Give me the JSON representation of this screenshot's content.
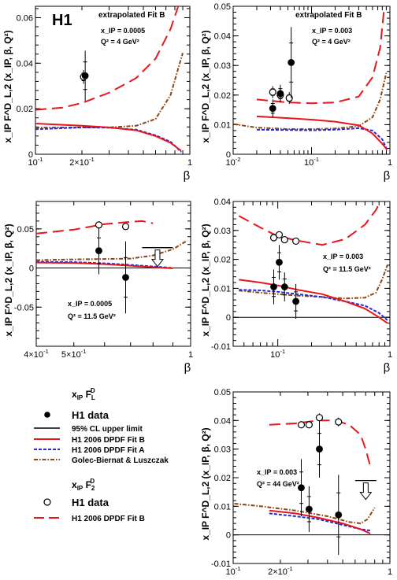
{
  "figure": {
    "logo": "H1",
    "ylabel": "x_IP F^D_L,2 (x_IP, β, Q²)",
    "xlabel": "β"
  },
  "legend": {
    "fl_header": "x_IP F^D_L",
    "f2_header": "x_IP F^D_2",
    "h1_data": "H1 data",
    "cl": "95% CL upper limit",
    "fitB": "H1 2006 DPDF Fit B",
    "fitA": "H1 2006 DPDF Fit A",
    "gbw": "Golec-Biernat & Luszczak"
  },
  "colors": {
    "fitB": "#e8161c",
    "fitA": "#1f2bd6",
    "gbw": "#8b4513",
    "axis": "#000000"
  },
  "chart_data": [
    {
      "type": "line",
      "xlog": true,
      "xlim": [
        0.1,
        1
      ],
      "ylim": [
        0,
        0.065
      ],
      "yticks": [
        "0",
        "0.02",
        "0.04",
        "0.06"
      ],
      "xticks": [
        {
          "v": 0.1,
          "t": "10^-1"
        },
        {
          "v": 0.2,
          "t": "2×10^-1"
        },
        {
          "v": 1,
          "t": "1"
        }
      ],
      "extra_label": "extrapolated Fit B",
      "xip_label": "x_IP = 0.0005",
      "q2_label": "Q² = 4 GeV²",
      "fl_points": [
        {
          "x": 0.21,
          "y": 0.0345,
          "e": 0.011
        }
      ],
      "f2_points": [
        {
          "x": 0.205,
          "y": 0.034,
          "e": 0.003
        }
      ],
      "curves": {
        "fitB_F2": [
          [
            0.1,
            0.0195
          ],
          [
            0.15,
            0.0205
          ],
          [
            0.2,
            0.0225
          ],
          [
            0.3,
            0.027
          ],
          [
            0.45,
            0.0335
          ],
          [
            0.6,
            0.042
          ],
          [
            0.75,
            0.055
          ],
          [
            0.85,
            0.066
          ]
        ],
        "fitB_FL": [
          [
            0.1,
            0.0135
          ],
          [
            0.2,
            0.0125
          ],
          [
            0.3,
            0.0118
          ],
          [
            0.45,
            0.0105
          ],
          [
            0.6,
            0.008
          ],
          [
            0.75,
            0.005
          ],
          [
            0.88,
            0.0015
          ]
        ],
        "fitA_FL": [
          [
            0.1,
            0.011
          ],
          [
            0.2,
            0.0118
          ],
          [
            0.3,
            0.0117
          ],
          [
            0.45,
            0.0108
          ],
          [
            0.6,
            0.0083
          ],
          [
            0.75,
            0.0055
          ],
          [
            0.88,
            0.001
          ]
        ],
        "gbw_FL": [
          [
            0.1,
            0.0117
          ],
          [
            0.2,
            0.0118
          ],
          [
            0.3,
            0.0118
          ],
          [
            0.45,
            0.0125
          ],
          [
            0.6,
            0.0155
          ],
          [
            0.75,
            0.026
          ],
          [
            0.9,
            0.0445
          ]
        ]
      }
    },
    {
      "type": "line",
      "xlog": true,
      "xlim": [
        0.01,
        1
      ],
      "ylim": [
        0,
        0.05
      ],
      "yticks": [
        "0",
        "0.01",
        "0.02",
        "0.03",
        "0.04",
        "0.05"
      ],
      "xticks": [
        {
          "v": 0.01,
          "t": "10^-2"
        },
        {
          "v": 0.1,
          "t": "10^-1"
        },
        {
          "v": 1,
          "t": "1"
        }
      ],
      "extra_label": "extrapolated Fit B",
      "xip_label": "x_IP = 0.003",
      "q2_label": "Q² = 4 GeV²",
      "fl_points": [
        {
          "x": 0.032,
          "y": 0.0155,
          "e": 0.003
        },
        {
          "x": 0.04,
          "y": 0.0205,
          "e": 0.003
        },
        {
          "x": 0.055,
          "y": 0.031,
          "e": 0.012
        }
      ],
      "f2_points": [
        {
          "x": 0.032,
          "y": 0.021,
          "e": 0.002
        },
        {
          "x": 0.04,
          "y": 0.02,
          "e": 0.002
        },
        {
          "x": 0.052,
          "y": 0.019,
          "e": 0.002
        }
      ],
      "curves": {
        "fitB_F2": [
          [
            0.02,
            0.0185
          ],
          [
            0.05,
            0.0175
          ],
          [
            0.1,
            0.0172
          ],
          [
            0.2,
            0.0175
          ],
          [
            0.4,
            0.0195
          ],
          [
            0.6,
            0.026
          ],
          [
            0.75,
            0.036
          ],
          [
            0.85,
            0.05
          ]
        ],
        "fitB_FL": [
          [
            0.02,
            0.0128
          ],
          [
            0.05,
            0.0122
          ],
          [
            0.1,
            0.0117
          ],
          [
            0.2,
            0.011
          ],
          [
            0.4,
            0.0098
          ],
          [
            0.6,
            0.007
          ],
          [
            0.8,
            0.0035
          ],
          [
            0.92,
            0.0015
          ]
        ],
        "fitA_FL": [
          [
            0.02,
            0.0083
          ],
          [
            0.05,
            0.0082
          ],
          [
            0.1,
            0.0081
          ],
          [
            0.2,
            0.0083
          ],
          [
            0.4,
            0.0088
          ],
          [
            0.6,
            0.008
          ],
          [
            0.8,
            0.005
          ],
          [
            0.92,
            0.0015
          ]
        ],
        "gbw_FL": [
          [
            0.008,
            0.0106
          ],
          [
            0.02,
            0.009
          ],
          [
            0.05,
            0.0085
          ],
          [
            0.1,
            0.0085
          ],
          [
            0.2,
            0.0087
          ],
          [
            0.4,
            0.0095
          ],
          [
            0.6,
            0.0125
          ],
          [
            0.75,
            0.0185
          ],
          [
            0.9,
            0.0275
          ]
        ]
      }
    },
    {
      "type": "line",
      "xlog": true,
      "xlim": [
        0.4,
        1
      ],
      "ylim": [
        -0.1,
        0.085
      ],
      "yticks": [
        "-0.05",
        "0",
        "0.05"
      ],
      "xticks": [
        {
          "v": 0.4,
          "t": "4×10^-1"
        },
        {
          "v": 0.5,
          "t": "5×10^-1"
        },
        {
          "v": 1,
          "t": "1"
        }
      ],
      "extra_label": "",
      "xip_label": "x_IP = 0.0005",
      "q2_label": "Q² = 11.5 GeV²",
      "fl_points": [
        {
          "x": 0.58,
          "y": 0.022,
          "e": 0.03
        },
        {
          "x": 0.68,
          "y": -0.012,
          "e": 0.046
        }
      ],
      "f2_points": [
        {
          "x": 0.58,
          "y": 0.055,
          "e": 0.003
        },
        {
          "x": 0.68,
          "y": 0.053,
          "e": 0.003
        }
      ],
      "limit": {
        "x1": 0.75,
        "x2": 0.9,
        "y": 0.026
      },
      "curves": {
        "fitB_F2": [
          [
            0.4,
            0.044
          ],
          [
            0.5,
            0.049
          ],
          [
            0.6,
            0.056
          ],
          [
            0.7,
            0.059
          ],
          [
            0.75,
            0.06
          ],
          [
            0.8,
            0.057
          ]
        ],
        "fitB_FL": [
          [
            0.4,
            0.007
          ],
          [
            0.5,
            0.0065
          ],
          [
            0.6,
            0.005
          ],
          [
            0.7,
            0.003
          ],
          [
            0.8,
            0.001
          ],
          [
            0.9,
            -0.0005
          ]
        ],
        "fitA_FL": [
          [
            0.4,
            0.008
          ],
          [
            0.5,
            0.0075
          ],
          [
            0.6,
            0.006
          ],
          [
            0.7,
            0.004
          ],
          [
            0.8,
            0.002
          ],
          [
            0.9,
            0.0
          ]
        ],
        "gbw_FL": [
          [
            0.4,
            0.01
          ],
          [
            0.5,
            0.011
          ],
          [
            0.6,
            0.0115
          ],
          [
            0.7,
            0.012
          ],
          [
            0.8,
            0.016
          ],
          [
            0.9,
            0.024
          ],
          [
            0.98,
            0.035
          ]
        ]
      }
    },
    {
      "type": "line",
      "xlog": true,
      "xlim": [
        0.04,
        1
      ],
      "ylim": [
        -0.01,
        0.04
      ],
      "yticks": [
        "-0.01",
        "0",
        "0.01",
        "0.02",
        "0.03",
        "0.04"
      ],
      "xticks": [
        {
          "v": 0.1,
          "t": "10^-1"
        },
        {
          "v": 1,
          "t": "1"
        }
      ],
      "extra_label": "",
      "xip_label": "x_IP = 0.003",
      "q2_label": "Q² = 11.5 GeV²",
      "fl_points": [
        {
          "x": 0.092,
          "y": 0.0105,
          "e": 0.006
        },
        {
          "x": 0.103,
          "y": 0.019,
          "e": 0.006
        },
        {
          "x": 0.115,
          "y": 0.0105,
          "e": 0.005
        },
        {
          "x": 0.145,
          "y": 0.0055,
          "e": 0.006
        }
      ],
      "f2_points": [
        {
          "x": 0.092,
          "y": 0.0275,
          "e": 0.001
        },
        {
          "x": 0.103,
          "y": 0.0285,
          "e": 0.001
        },
        {
          "x": 0.115,
          "y": 0.0268,
          "e": 0.001
        },
        {
          "x": 0.145,
          "y": 0.0263,
          "e": 0.001
        }
      ],
      "curves": {
        "fitB_F2": [
          [
            0.045,
            0.035
          ],
          [
            0.07,
            0.031
          ],
          [
            0.1,
            0.028
          ],
          [
            0.15,
            0.0265
          ],
          [
            0.25,
            0.025
          ],
          [
            0.4,
            0.027
          ],
          [
            0.6,
            0.032
          ],
          [
            0.75,
            0.037
          ],
          [
            0.85,
            0.041
          ]
        ],
        "fitB_FL": [
          [
            0.045,
            0.013
          ],
          [
            0.07,
            0.012
          ],
          [
            0.1,
            0.011
          ],
          [
            0.15,
            0.0095
          ],
          [
            0.25,
            0.008
          ],
          [
            0.4,
            0.0055
          ],
          [
            0.6,
            0.003
          ],
          [
            0.8,
            0.0
          ],
          [
            0.95,
            -0.002
          ]
        ],
        "fitA_FL": [
          [
            0.045,
            0.0095
          ],
          [
            0.07,
            0.0093
          ],
          [
            0.1,
            0.0088
          ],
          [
            0.15,
            0.008
          ],
          [
            0.25,
            0.007
          ],
          [
            0.4,
            0.0055
          ],
          [
            0.6,
            0.004
          ],
          [
            0.8,
            0.0015
          ],
          [
            0.95,
            -0.001
          ]
        ],
        "gbw_FL": [
          [
            0.045,
            0.0092
          ],
          [
            0.07,
            0.0085
          ],
          [
            0.1,
            0.008
          ],
          [
            0.15,
            0.0075
          ],
          [
            0.25,
            0.007
          ],
          [
            0.4,
            0.0065
          ],
          [
            0.6,
            0.0068
          ],
          [
            0.75,
            0.0085
          ],
          [
            0.85,
            0.013
          ],
          [
            0.95,
            0.018
          ]
        ]
      }
    },
    {
      "type": "line",
      "xlog": true,
      "xlim": [
        0.1,
        1
      ],
      "ylim": [
        -0.01,
        0.05
      ],
      "yticks": [
        "-0.01",
        "0",
        "0.01",
        "0.02",
        "0.03",
        "0.04",
        "0.05"
      ],
      "xticks": [
        {
          "v": 0.1,
          "t": "10^-1"
        },
        {
          "v": 0.2,
          "t": "2×10^-1"
        },
        {
          "v": 1,
          "t": "1"
        }
      ],
      "extra_label": "",
      "xip_label": "x_IP = 0.003",
      "q2_label": "Q² = 44 GeV²",
      "fl_points": [
        {
          "x": 0.272,
          "y": 0.0165,
          "e": 0.01
        },
        {
          "x": 0.305,
          "y": 0.009,
          "e": 0.008
        },
        {
          "x": 0.355,
          "y": 0.03,
          "e": 0.01
        },
        {
          "x": 0.47,
          "y": 0.007,
          "e": 0.014
        }
      ],
      "f2_points": [
        {
          "x": 0.272,
          "y": 0.0385,
          "e": 0.0012
        },
        {
          "x": 0.305,
          "y": 0.0385,
          "e": 0.0012
        },
        {
          "x": 0.355,
          "y": 0.041,
          "e": 0.0015
        },
        {
          "x": 0.47,
          "y": 0.0395,
          "e": 0.0015
        }
      ],
      "limit": {
        "x1": 0.6,
        "x2": 0.82,
        "y": 0.019
      },
      "curves": {
        "fitB_F2": [
          [
            0.17,
            0.0385
          ],
          [
            0.25,
            0.039
          ],
          [
            0.35,
            0.04
          ],
          [
            0.45,
            0.04
          ],
          [
            0.55,
            0.0385
          ],
          [
            0.65,
            0.035
          ],
          [
            0.7,
            0.03
          ],
          [
            0.75,
            0.024
          ]
        ],
        "fitB_FL": [
          [
            0.17,
            0.0085
          ],
          [
            0.25,
            0.0075
          ],
          [
            0.35,
            0.006
          ],
          [
            0.5,
            0.004
          ],
          [
            0.65,
            0.002
          ],
          [
            0.75,
            0.0005
          ]
        ],
        "fitA_FL": [
          [
            0.17,
            0.0075
          ],
          [
            0.25,
            0.0065
          ],
          [
            0.35,
            0.0055
          ],
          [
            0.5,
            0.0035
          ],
          [
            0.65,
            0.002
          ],
          [
            0.75,
            0.0015
          ]
        ],
        "gbw_FL": [
          [
            0.08,
            0.0115
          ],
          [
            0.15,
            0.01
          ],
          [
            0.25,
            0.0085
          ],
          [
            0.4,
            0.0065
          ],
          [
            0.55,
            0.0045
          ],
          [
            0.65,
            0.004
          ],
          [
            0.72,
            0.0055
          ],
          [
            0.8,
            0.0095
          ]
        ]
      }
    }
  ]
}
